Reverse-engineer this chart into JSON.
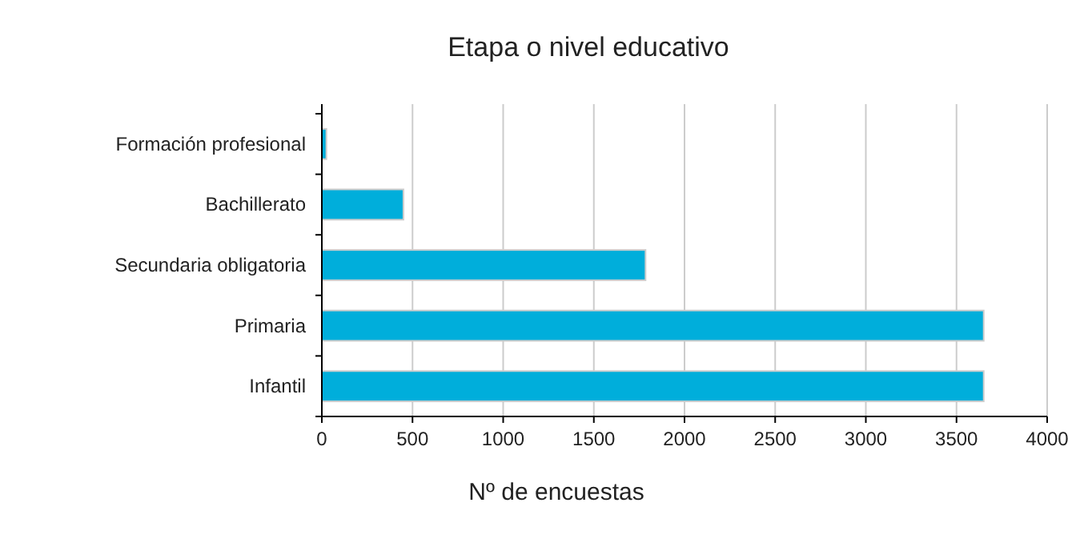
{
  "chart_data": {
    "type": "bar",
    "orientation": "horizontal",
    "title": "Etapa o nivel educativo",
    "xlabel": "Nº de encuestas",
    "categories": [
      "Formación profesional",
      "Bachillerato",
      "Secundaria obligatoria",
      "Primaria",
      "Infantil"
    ],
    "values": [
      25,
      450,
      1785,
      3650,
      3650
    ],
    "color": "#00aedb",
    "xlim": [
      0,
      4000
    ],
    "xticks": [
      0,
      500,
      1000,
      1500,
      2000,
      2500,
      3000,
      3500,
      4000
    ],
    "grid": "x"
  }
}
